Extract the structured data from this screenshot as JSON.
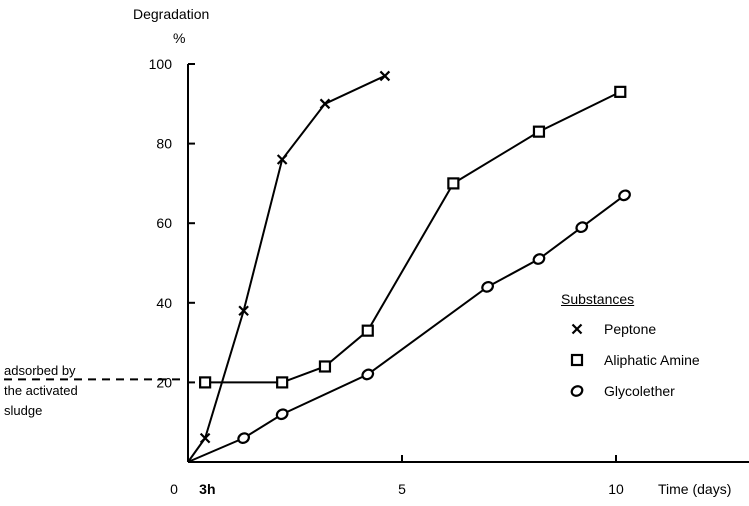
{
  "chart_data": {
    "type": "line",
    "ylabel": "Degradation",
    "yunit": "%",
    "xlabel": "Time (days)",
    "xlim": [
      0,
      13.5
    ],
    "ylim": [
      0,
      100
    ],
    "xticks": [
      {
        "value": 0,
        "label": "0"
      },
      {
        "value": 0.125,
        "label": "3h"
      },
      {
        "value": 5,
        "label": "5"
      },
      {
        "value": 10,
        "label": "10"
      }
    ],
    "yticks": [
      {
        "value": 20,
        "label": "20"
      },
      {
        "value": 40,
        "label": "40"
      },
      {
        "value": 60,
        "label": "60"
      },
      {
        "value": 80,
        "label": "80"
      },
      {
        "value": 100,
        "label": "100"
      }
    ],
    "grid": false,
    "legend": {
      "title": "Substances",
      "position": "right"
    },
    "annotations": {
      "adsorbed": [
        "adsorbed by",
        "the activated",
        "sludge"
      ],
      "adsorbed_level": 20
    },
    "series": [
      {
        "name": "Peptone",
        "marker": "x",
        "x": [
          0,
          0.4,
          1.3,
          2.2,
          3.2,
          4.6
        ],
        "y": [
          0,
          6,
          38,
          76,
          90,
          97
        ]
      },
      {
        "name": "Aliphatic Amine",
        "marker": "square",
        "x": [
          0.4,
          2.2,
          3.2,
          4.2,
          6.2,
          8.2,
          10.1
        ],
        "y": [
          20,
          20,
          24,
          33,
          70,
          83,
          93
        ]
      },
      {
        "name": "Glycolether",
        "marker": "circle",
        "x": [
          0,
          1.3,
          2.2,
          4.2,
          7.0,
          8.2,
          9.2,
          10.2
        ],
        "y": [
          0,
          6,
          12,
          22,
          44,
          51,
          59,
          67
        ]
      }
    ]
  }
}
